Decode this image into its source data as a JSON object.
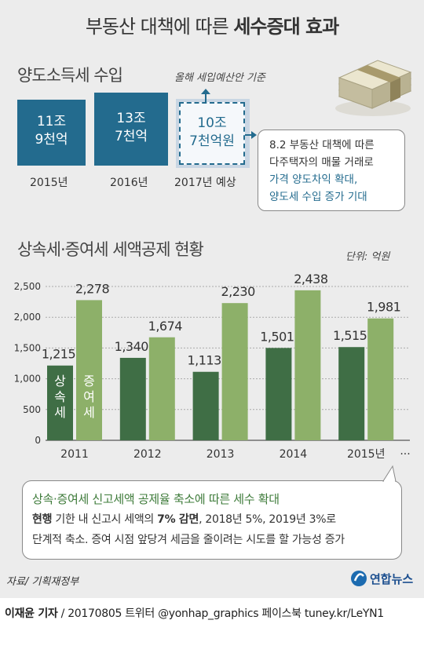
{
  "title": {
    "prefix": "부동산 대책에 따른 ",
    "bold": "세수증대 효과"
  },
  "section1": {
    "heading": "양도소득세 수입",
    "basis": "올해 세입예산안 기준",
    "boxes": [
      {
        "line1": "11조",
        "line2": "9천억",
        "year": "2015년"
      },
      {
        "line1": "13조",
        "line2": "7천억",
        "year": "2016년"
      },
      {
        "line1": "10조",
        "line2": "7천억원",
        "year": "2017년 예상"
      }
    ],
    "bubble": {
      "line1": "8.2 부동산 대책에 따른",
      "line2": "다주택자의 매물 거래로",
      "line3": "가격 양도차익 확대,",
      "line4": "양도세 수입 증가 기대"
    }
  },
  "section2": {
    "heading": "상속세·증여세 세액공제 현황",
    "unit": "단위: 억원"
  },
  "chart_data": {
    "type": "bar",
    "title": "상속세·증여세 세액공제 현황",
    "unit": "단위: 억원",
    "categories": [
      "2011",
      "2012",
      "2013",
      "2014",
      "2015년"
    ],
    "series": [
      {
        "name": "상속세",
        "values": [
          1215,
          1340,
          1113,
          1501,
          1515
        ],
        "color": "#3f6e45"
      },
      {
        "name": "증여세",
        "values": [
          2278,
          1674,
          2230,
          2438,
          1981
        ],
        "color": "#8db069"
      }
    ],
    "value_labels": [
      [
        "1,215",
        "1,340",
        "1,113",
        "1,501",
        "1,515"
      ],
      [
        "2,278",
        "1,674",
        "2,230",
        "2,438",
        "1,981"
      ]
    ],
    "yticks": [
      "0",
      "500",
      "1,000",
      "1,500",
      "2,000",
      "2,500"
    ],
    "ylim": [
      0,
      2500
    ],
    "continuation": "···",
    "grid": true
  },
  "note": {
    "heading": "상속·증여세 신고세액 공제율 축소에 따른 세수 확대",
    "bold1": "현행",
    "t1": " 기한 내 신고시 세액의 ",
    "bold2": "7% 감면",
    "t2": ", 2018년 5%, 2019년 3%로",
    "line3": "단계적 축소. 증여 시점 앞당겨 세금을 줄이려는 시도를 할 가능성 증가"
  },
  "source": "자료/ 기획재정부",
  "logo": "연합뉴스",
  "credit": {
    "name": "이재윤 기자",
    "rest": " / 20170805   트위터 @yonhap_graphics  페이스북 tuney.kr/LeYN1"
  },
  "colors": {
    "blue": "#236b8e",
    "dark_green": "#3f6e45",
    "light_green": "#8db069",
    "panel": "#ececec"
  }
}
